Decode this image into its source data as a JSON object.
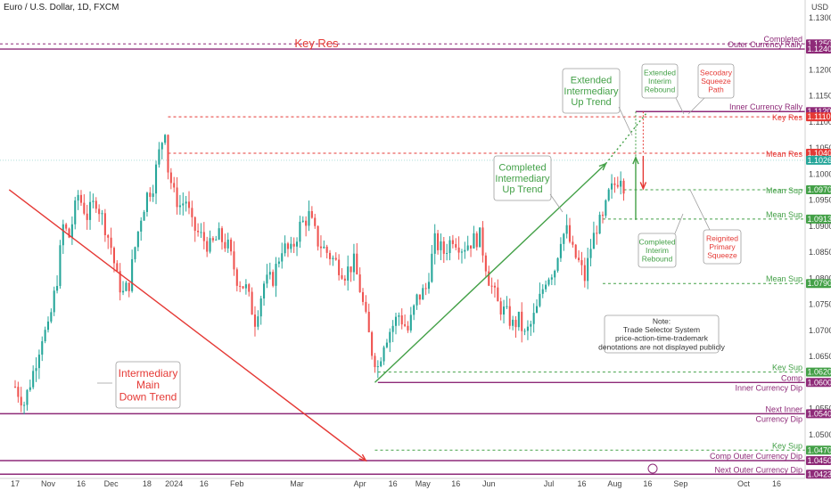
{
  "chart_data": {
    "type": "candlestick",
    "title": "Euro / U.S. Dollar, 1D, FXCM",
    "currency_label": "USD",
    "ylim": [
      1.0425,
      1.1325
    ],
    "y_ticks": [
      "1.13000",
      "1.12500",
      "1.12000",
      "1.11500",
      "1.11000",
      "1.10500",
      "1.10000",
      "1.09500",
      "1.09000",
      "1.08500",
      "1.08000",
      "1.07500",
      "1.07000",
      "1.06500",
      "1.06000",
      "1.05500",
      "1.05000",
      "1.04500"
    ],
    "x_ticks": [
      {
        "label": "17",
        "pos": 0.0
      },
      {
        "label": "Nov",
        "pos": 11.0
      },
      {
        "label": "16",
        "pos": 22.0
      },
      {
        "label": "Dec",
        "pos": 32.0
      },
      {
        "label": "18",
        "pos": 44.0
      },
      {
        "label": "2024",
        "pos": 53.0
      },
      {
        "label": "16",
        "pos": 63.0
      },
      {
        "label": "Feb",
        "pos": 74.0
      },
      {
        "label": "Mar",
        "pos": 94.0
      },
      {
        "label": "Apr",
        "pos": 115.0
      },
      {
        "label": "16",
        "pos": 126.0
      },
      {
        "label": "May",
        "pos": 136.0
      },
      {
        "label": "16",
        "pos": 147.0
      },
      {
        "label": "Jun",
        "pos": 158.0
      },
      {
        "label": "Jul",
        "pos": 178.0
      },
      {
        "label": "16",
        "pos": 189.0
      },
      {
        "label": "Aug",
        "pos": 200.0
      },
      {
        "label": "16",
        "pos": 211.0
      },
      {
        "label": "Sep",
        "pos": 222.0
      },
      {
        "label": "Oct",
        "pos": 243.0
      },
      {
        "label": "16",
        "pos": 254.0
      }
    ],
    "bullish_color": "#26a69a",
    "bearish_color": "#ef5350",
    "ohlc_anchor_points": [
      [
        0,
        1.0592
      ],
      [
        3,
        1.056
      ],
      [
        6,
        1.062
      ],
      [
        9,
        1.069
      ],
      [
        11,
        1.07
      ],
      [
        14,
        1.08
      ],
      [
        16,
        1.09
      ],
      [
        18,
        1.088
      ],
      [
        21,
        1.096
      ],
      [
        24,
        1.092
      ],
      [
        27,
        1.095
      ],
      [
        30,
        1.09
      ],
      [
        32,
        1.086
      ],
      [
        34,
        1.08
      ],
      [
        36,
        1.077
      ],
      [
        38,
        1.079
      ],
      [
        40,
        1.086
      ],
      [
        42,
        1.092
      ],
      [
        44,
        1.096
      ],
      [
        46,
        1.098
      ],
      [
        48,
        1.104
      ],
      [
        50,
        1.109
      ],
      [
        51,
        1.101
      ],
      [
        53,
        1.096
      ],
      [
        55,
        1.094
      ],
      [
        57,
        1.095
      ],
      [
        59,
        1.09
      ],
      [
        62,
        1.088
      ],
      [
        65,
        1.086
      ],
      [
        68,
        1.088
      ],
      [
        71,
        1.086
      ],
      [
        74,
        1.08
      ],
      [
        77,
        1.078
      ],
      [
        80,
        1.072
      ],
      [
        83,
        1.079
      ],
      [
        86,
        1.08
      ],
      [
        89,
        1.086
      ],
      [
        92,
        1.085
      ],
      [
        95,
        1.09
      ],
      [
        98,
        1.092
      ],
      [
        101,
        1.087
      ],
      [
        104,
        1.085
      ],
      [
        107,
        1.083
      ],
      [
        110,
        1.081
      ],
      [
        113,
        1.083
      ],
      [
        115,
        1.078
      ],
      [
        117,
        1.072
      ],
      [
        119,
        1.066
      ],
      [
        121,
        1.063
      ],
      [
        123,
        1.068
      ],
      [
        125,
        1.07
      ],
      [
        128,
        1.073
      ],
      [
        131,
        1.07
      ],
      [
        134,
        1.076
      ],
      [
        137,
        1.078
      ],
      [
        140,
        1.087
      ],
      [
        143,
        1.085
      ],
      [
        146,
        1.088
      ],
      [
        149,
        1.086
      ],
      [
        152,
        1.087
      ],
      [
        155,
        1.088
      ],
      [
        158,
        1.08
      ],
      [
        161,
        1.075
      ],
      [
        164,
        1.073
      ],
      [
        166,
        1.071
      ],
      [
        168,
        1.072
      ],
      [
        170,
        1.069
      ],
      [
        172,
        1.071
      ],
      [
        174,
        1.074
      ],
      [
        177,
        1.08
      ],
      [
        180,
        1.082
      ],
      [
        182,
        1.088
      ],
      [
        184,
        1.089
      ],
      [
        186,
        1.085
      ],
      [
        188,
        1.083
      ],
      [
        190,
        1.08
      ],
      [
        192,
        1.086
      ],
      [
        194,
        1.09
      ],
      [
        196,
        1.091
      ],
      [
        198,
        1.096
      ],
      [
        200,
        1.098
      ],
      [
        202,
        1.1
      ],
      [
        203,
        1.098
      ]
    ],
    "horizontal_levels": [
      {
        "price": 1.125,
        "label": "Completed",
        "tag": "1.12500",
        "color": "#8e2a78",
        "style": "dashed",
        "label_color": "#8e2a78"
      },
      {
        "price": 1.124,
        "label": "Outer Currency Rally",
        "tag": "1.12400",
        "color": "#8e2a78",
        "style": "solid",
        "label_color": "#8e2a78"
      },
      {
        "price": 1.112,
        "label": "Inner Currency Rally",
        "tag": "1.11200",
        "color": "#8e2a78",
        "style": "solid",
        "label_color": "#8e2a78"
      },
      {
        "price": 1.111,
        "label": "Key Res",
        "tag": "1.11100",
        "color": "#e53935",
        "style": "dashed",
        "label_color": "#e53935"
      },
      {
        "price": 1.104,
        "label": "Mean Res",
        "tag": "1.10400",
        "color": "#e53935",
        "style": "dashed",
        "label_color": "#e53935"
      },
      {
        "price": 1.10265,
        "label": "",
        "tag": "1.10265",
        "color": "#26a69a",
        "style": "none",
        "label_color": "#26a69a"
      },
      {
        "price": 1.097,
        "label": "Mean Sup",
        "tag": "1.09700",
        "color": "#43a047",
        "style": "dashed",
        "label_color": "#43a047"
      },
      {
        "price": 1.09137,
        "label": "Mean Sup",
        "tag": "1.09137",
        "color": "#43a047",
        "style": "dashed",
        "label_color": "#43a047"
      },
      {
        "price": 1.079,
        "label": "Mean Sup",
        "tag": "1.07900",
        "color": "#43a047",
        "style": "dashed",
        "label_color": "#43a047"
      },
      {
        "price": 1.062,
        "label": "Key Sup",
        "tag": "1.06200",
        "color": "#43a047",
        "style": "dashed",
        "label_color": "#43a047"
      },
      {
        "price": 1.06,
        "label": "Comp\nInner Currency Dip",
        "tag": "1.06000",
        "color": "#8e2a78",
        "style": "solid",
        "label_color": "#8e2a78"
      },
      {
        "price": 1.054,
        "label": "Next Inner\nCurrency Dip",
        "tag": "1.05400",
        "color": "#8e2a78",
        "style": "solid",
        "label_color": "#8e2a78"
      },
      {
        "price": 1.047,
        "label": "Key Sup",
        "tag": "1.04700",
        "color": "#43a047",
        "style": "dashed",
        "label_color": "#43a047"
      },
      {
        "price": 1.045,
        "label": "Comp Outer Currency Dip",
        "tag": "1.04500",
        "color": "#8e2a78",
        "style": "solid",
        "label_color": "#8e2a78"
      },
      {
        "price": 1.04239,
        "label": "Next Outer Currency Dip",
        "tag": "1.04239",
        "color": "#8e2a78",
        "style": "solid",
        "label_color": "#8e2a78"
      }
    ],
    "key_res_left": {
      "text": "Key Res",
      "price": 1.125
    },
    "annotations": [
      {
        "text": "Intermediary\nMain\nDown Trend",
        "color": "#e53935"
      },
      {
        "text": "Completed\nIntermediary\nUp Trend",
        "color": "#43a047"
      },
      {
        "text": "Extended\nIntermediary\nUp Trend",
        "color": "#43a047"
      },
      {
        "text": "Extended\nInterim\nRebound",
        "color": "#43a047"
      },
      {
        "text": "Secodary\nSqueeze\nPath",
        "color": "#e53935"
      },
      {
        "text": "Completed\nInterim\nRebound",
        "color": "#43a047"
      },
      {
        "text": "Reignited\nPrimary\nSqueeze",
        "color": "#e53935"
      },
      {
        "text": "Note:\nTrade Selector System\nprice-action-time-trademark\ndenotations are not displayed publicly",
        "color": "#333333"
      }
    ],
    "trend_lines": [
      {
        "name": "down-trend",
        "from": [
          -2,
          1.097
        ],
        "to": [
          117,
          1.045
        ],
        "color": "#e53935"
      },
      {
        "name": "up-trend",
        "from": [
          120,
          1.06
        ],
        "to": [
          197,
          1.102
        ],
        "color": "#43a047"
      },
      {
        "name": "extended-up-trend",
        "from": [
          197,
          1.102
        ],
        "to": [
          211,
          1.112
        ],
        "color": "#43a047"
      }
    ]
  }
}
